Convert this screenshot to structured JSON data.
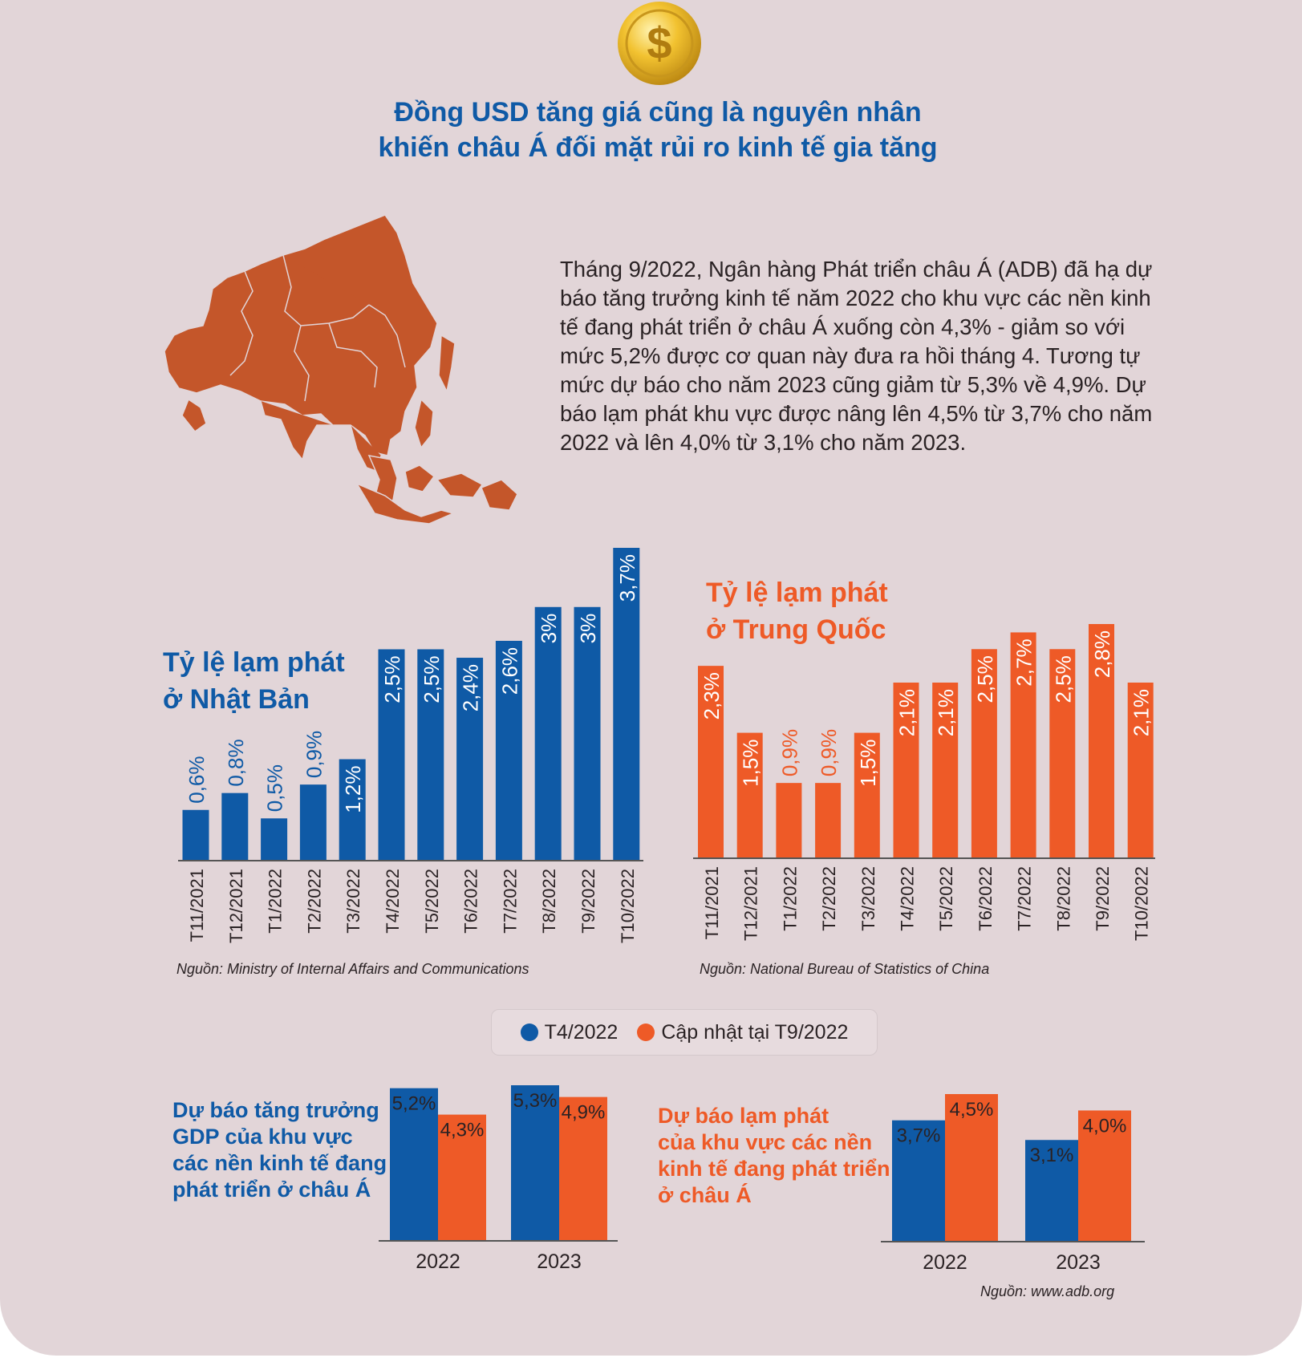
{
  "headline": {
    "line1": "Đồng USD tăng giá cũng là nguyên nhân",
    "line2": "khiến châu Á đối mặt rủi ro kinh tế gia tăng"
  },
  "intro": {
    "text": "Tháng 9/2022, Ngân hàng Phát triển châu Á (ADB) đã hạ dự báo tăng trưởng kinh tế năm 2022 cho khu vực các nền kinh tế đang phát triển ở châu Á xuống còn 4,3% - giảm so với mức 5,2% được cơ quan này đưa ra hồi tháng 4. Tương tự mức dự báo cho năm 2023 cũng giảm từ 5,3% về 4,9%. Dự báo lạm phát khu vực được nâng lên 4,5% từ 3,7% cho năm 2022 và lên 4,0% từ 3,1% cho năm 2023."
  },
  "colors": {
    "blue": "#0f5aa6",
    "orange": "#ee5a27",
    "map": "#c4562a",
    "background": "#e2d5d8",
    "coin": "#f2c230"
  },
  "icons": {
    "coin": "dollar-coin-icon",
    "map": "asia-map-icon"
  },
  "legend": {
    "item1": "T4/2022",
    "item2": "Cập nhật tại T9/2022"
  },
  "sources": {
    "japan": "Nguồn: Ministry of Internal Affairs and Communications",
    "china": "Nguồn: National Bureau of Statistics of China",
    "adb": "Nguồn: www.adb.org"
  },
  "chart_data": [
    {
      "type": "bar",
      "title": "Tỷ lệ lạm phát ở Nhật Bản",
      "title_line1": "Tỷ lệ lạm phát",
      "title_line2": "ở Nhật Bản",
      "categories": [
        "T11/2021",
        "T12/2021",
        "T1/2022",
        "T2/2022",
        "T3/2022",
        "T4/2022",
        "T5/2022",
        "T6/2022",
        "T7/2022",
        "T8/2022",
        "T9/2022",
        "T10/2022"
      ],
      "values": [
        0.6,
        0.8,
        0.5,
        0.9,
        1.2,
        2.5,
        2.5,
        2.4,
        2.6,
        3.0,
        3.0,
        3.7
      ],
      "labels": [
        "0,6%",
        "0,8%",
        "0,5%",
        "0,9%",
        "1,2%",
        "2,5%",
        "2,5%",
        "2,4%",
        "2,6%",
        "3%",
        "3%",
        "3,7%"
      ],
      "color": "#0f5aa6",
      "ylim": [
        0,
        3.7
      ],
      "grid": false
    },
    {
      "type": "bar",
      "title": "Tỷ lệ lạm phát ở Trung Quốc",
      "title_line1": "Tỷ lệ lạm phát",
      "title_line2": "ở Trung Quốc",
      "categories": [
        "T11/2021",
        "T12/2021",
        "T1/2022",
        "T2/2022",
        "T3/2022",
        "T4/2022",
        "T5/2022",
        "T6/2022",
        "T7/2022",
        "T8/2022",
        "T9/2022",
        "T10/2022"
      ],
      "values": [
        2.3,
        1.5,
        0.9,
        0.9,
        1.5,
        2.1,
        2.1,
        2.5,
        2.7,
        2.5,
        2.8,
        2.1
      ],
      "labels": [
        "2,3%",
        "1,5%",
        "0,9%",
        "0,9%",
        "1,5%",
        "2,1%",
        "2,1%",
        "2,5%",
        "2,7%",
        "2,5%",
        "2,8%",
        "2,1%"
      ],
      "color": "#ee5a27",
      "ylim": [
        0,
        2.8
      ],
      "grid": false
    },
    {
      "type": "bar",
      "title": "Dự báo tăng trưởng GDP của khu vực các nền kinh tế đang phát triển ở châu Á",
      "title_lines": [
        "Dự báo tăng trưởng",
        "GDP của khu vực",
        "các nền kinh tế đang",
        "phát triển ở châu Á"
      ],
      "categories": [
        "2022",
        "2023"
      ],
      "series": [
        {
          "name": "T4/2022",
          "values": [
            5.2,
            5.3
          ],
          "labels": [
            "5,2%",
            "5,3%"
          ],
          "color": "#0f5aa6"
        },
        {
          "name": "Cập nhật tại T9/2022",
          "values": [
            4.3,
            4.9
          ],
          "labels": [
            "4,3%",
            "4,9%"
          ],
          "color": "#ee5a27"
        }
      ],
      "ylim": [
        0,
        5.3
      ],
      "grid": false
    },
    {
      "type": "bar",
      "title": "Dự báo lạm phát của khu vực các nền kinh tế đang phát triển ở châu Á",
      "title_lines": [
        "Dự báo lạm phát",
        "của khu vực các nền",
        "kinh tế đang phát triển",
        "ở châu Á"
      ],
      "categories": [
        "2022",
        "2023"
      ],
      "series": [
        {
          "name": "T4/2022",
          "values": [
            3.7,
            3.1
          ],
          "labels": [
            "3,7%",
            "3,1%"
          ],
          "color": "#0f5aa6"
        },
        {
          "name": "Cập nhật tại T9/2022",
          "values": [
            4.5,
            4.0
          ],
          "labels": [
            "4,5%",
            "4,0%"
          ],
          "color": "#ee5a27"
        }
      ],
      "ylim": [
        0,
        4.5
      ],
      "grid": false
    }
  ]
}
